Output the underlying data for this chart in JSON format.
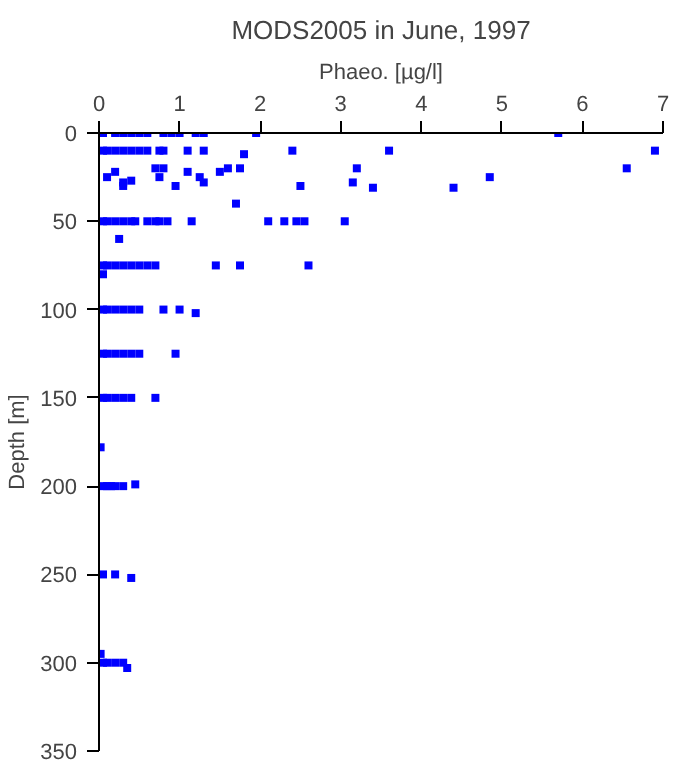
{
  "chart_data": {
    "type": "scatter",
    "title": "MODS2005 in June, 1997",
    "xlabel": "Phaeo. [µg/l]",
    "ylabel": "Depth [m]",
    "xlim": [
      0,
      7
    ],
    "xticks": [
      0,
      1,
      2,
      3,
      4,
      5,
      6,
      7
    ],
    "ylim": [
      350,
      0
    ],
    "yticks": [
      0,
      50,
      100,
      150,
      200,
      250,
      300,
      350
    ],
    "grid": false,
    "marker": "square",
    "series": [
      {
        "color": "#0000ff",
        "x": [
          0.05,
          0.2,
          0.3,
          0.4,
          0.5,
          0.6,
          0.8,
          0.9,
          1.0,
          1.2,
          1.3,
          1.95,
          5.7,
          0.05,
          0.1,
          0.2,
          0.3,
          0.4,
          0.5,
          0.6,
          0.75,
          0.8,
          1.1,
          1.3,
          1.8,
          2.4,
          3.6,
          6.9,
          0.1,
          0.2,
          0.3,
          0.7,
          0.8,
          0.75,
          1.1,
          1.25,
          1.5,
          1.6,
          1.75,
          3.2,
          2.5,
          3.15,
          3.4,
          4.4,
          4.85,
          6.55,
          1.3,
          0.95,
          0.4,
          0.3,
          1.7,
          0.05,
          0.1,
          0.2,
          0.3,
          0.4,
          0.45,
          0.6,
          0.7,
          0.75,
          0.85,
          1.15,
          2.1,
          2.3,
          2.45,
          2.55,
          3.05,
          0.25,
          0.05,
          0.1,
          0.2,
          0.3,
          0.4,
          0.5,
          0.6,
          0.7,
          1.45,
          1.75,
          2.6,
          0.05,
          0.05,
          0.1,
          0.2,
          0.3,
          0.4,
          0.5,
          0.8,
          1.0,
          1.2,
          0.05,
          0.1,
          0.2,
          0.3,
          0.4,
          0.5,
          0.95,
          0.05,
          0.1,
          0.2,
          0.3,
          0.4,
          0.7,
          0.02,
          0.05,
          0.1,
          0.15,
          0.2,
          0.3,
          0.45,
          0.05,
          0.2,
          0.4,
          0.05,
          0.1,
          0.2,
          0.3,
          0.35,
          0.02
        ],
        "values": [
          0,
          0,
          0,
          0,
          0,
          0,
          0,
          0,
          0,
          0,
          0,
          0,
          0,
          10,
          10,
          10,
          10,
          10,
          10,
          10,
          10,
          10,
          10,
          10,
          12,
          10,
          10,
          10,
          25,
          22,
          28,
          20,
          20,
          25,
          22,
          25,
          22,
          20,
          20,
          20,
          30,
          28,
          31,
          31,
          25,
          20,
          28,
          30,
          27,
          30,
          40,
          50,
          50,
          50,
          50,
          50,
          50,
          50,
          50,
          50,
          50,
          50,
          50,
          50,
          50,
          50,
          50,
          60,
          75,
          75,
          75,
          75,
          75,
          75,
          75,
          75,
          75,
          75,
          75,
          80,
          100,
          100,
          100,
          100,
          100,
          100,
          100,
          100,
          102,
          125,
          125,
          125,
          125,
          125,
          125,
          125,
          150,
          150,
          150,
          150,
          150,
          150,
          178,
          200,
          200,
          200,
          200,
          200,
          199,
          250,
          250,
          252,
          300,
          300,
          300,
          300,
          303,
          295
        ]
      }
    ]
  }
}
